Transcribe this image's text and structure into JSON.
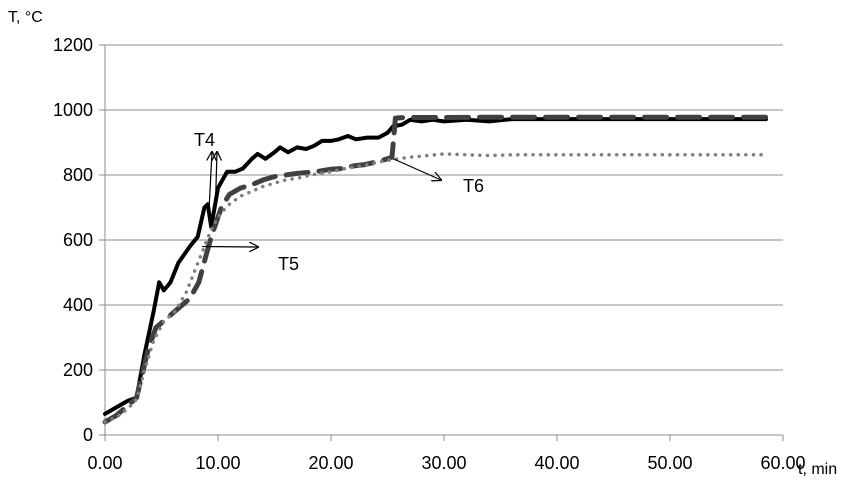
{
  "chart_data": {
    "type": "line",
    "title": "",
    "ylabel": "T, °C",
    "xlabel": "t, min",
    "xlim": [
      0,
      60
    ],
    "ylim": [
      0,
      1200
    ],
    "xticks": [
      "0.00",
      "10.00",
      "20.00",
      "30.00",
      "40.00",
      "50.00",
      "60.00"
    ],
    "yticks": [
      "0",
      "200",
      "400",
      "600",
      "800",
      "1000",
      "1200"
    ],
    "grid": "horizontal",
    "legend": "none",
    "series": [
      {
        "name": "T4",
        "color": "#000000",
        "style": "solid",
        "points": [
          [
            0,
            65
          ],
          [
            1,
            85
          ],
          [
            2,
            105
          ],
          [
            2.8,
            115
          ],
          [
            3.5,
            250
          ],
          [
            4.3,
            380
          ],
          [
            4.8,
            470
          ],
          [
            5.2,
            445
          ],
          [
            5.8,
            470
          ],
          [
            6.5,
            530
          ],
          [
            7.5,
            580
          ],
          [
            8.2,
            610
          ],
          [
            8.8,
            700
          ],
          [
            9.1,
            710
          ],
          [
            9.4,
            640
          ],
          [
            10.0,
            760
          ],
          [
            10.8,
            810
          ],
          [
            11.5,
            810
          ],
          [
            12.2,
            820
          ],
          [
            13.0,
            850
          ],
          [
            13.5,
            865
          ],
          [
            14.2,
            850
          ],
          [
            15.0,
            870
          ],
          [
            15.5,
            885
          ],
          [
            16.2,
            870
          ],
          [
            17.0,
            885
          ],
          [
            17.8,
            880
          ],
          [
            18.5,
            890
          ],
          [
            19.2,
            905
          ],
          [
            20.0,
            905
          ],
          [
            20.7,
            910
          ],
          [
            21.5,
            920
          ],
          [
            22.2,
            910
          ],
          [
            23.2,
            915
          ],
          [
            24.2,
            915
          ],
          [
            25.0,
            930
          ],
          [
            25.5,
            950
          ],
          [
            26.3,
            955
          ],
          [
            27.0,
            970
          ],
          [
            28.0,
            965
          ],
          [
            29.0,
            970
          ],
          [
            30.0,
            965
          ],
          [
            32.0,
            970
          ],
          [
            34.0,
            965
          ],
          [
            36.0,
            972
          ],
          [
            40.0,
            972
          ],
          [
            45.0,
            972
          ],
          [
            50.0,
            972
          ],
          [
            55.0,
            972
          ],
          [
            58.5,
            972
          ]
        ]
      },
      {
        "name": "T5",
        "color": "#404040",
        "style": "dashed",
        "points": [
          [
            0,
            40
          ],
          [
            1,
            60
          ],
          [
            2,
            90
          ],
          [
            2.8,
            115
          ],
          [
            3.8,
            260
          ],
          [
            4.5,
            330
          ],
          [
            5.5,
            360
          ],
          [
            6.5,
            390
          ],
          [
            7.5,
            420
          ],
          [
            8.3,
            470
          ],
          [
            9.0,
            560
          ],
          [
            9.5,
            620
          ],
          [
            10.3,
            700
          ],
          [
            11.0,
            740
          ],
          [
            12.0,
            760
          ],
          [
            13.0,
            770
          ],
          [
            14.0,
            785
          ],
          [
            15.0,
            795
          ],
          [
            16.0,
            800
          ],
          [
            17.0,
            805
          ],
          [
            18.0,
            808
          ],
          [
            19.0,
            812
          ],
          [
            20.0,
            818
          ],
          [
            21.0,
            820
          ],
          [
            22.0,
            828
          ],
          [
            23.0,
            832
          ],
          [
            24.0,
            840
          ],
          [
            25.0,
            850
          ],
          [
            25.4,
            855
          ],
          [
            25.7,
            975
          ],
          [
            26.5,
            977
          ],
          [
            28.0,
            977
          ],
          [
            30.0,
            977
          ],
          [
            35.0,
            978
          ],
          [
            40.0,
            978
          ],
          [
            45.0,
            978
          ],
          [
            50.0,
            978
          ],
          [
            55.0,
            978
          ],
          [
            58.5,
            978
          ]
        ]
      },
      {
        "name": "T6",
        "color": "#808080",
        "style": "dotted",
        "points": [
          [
            0,
            40
          ],
          [
            1,
            55
          ],
          [
            2,
            80
          ],
          [
            2.8,
            110
          ],
          [
            3.5,
            200
          ],
          [
            4.3,
            290
          ],
          [
            5.2,
            350
          ],
          [
            6.2,
            380
          ],
          [
            7.2,
            440
          ],
          [
            8.0,
            510
          ],
          [
            8.8,
            580
          ],
          [
            9.5,
            640
          ],
          [
            10.2,
            680
          ],
          [
            11.0,
            710
          ],
          [
            12.0,
            735
          ],
          [
            13.0,
            750
          ],
          [
            14.0,
            765
          ],
          [
            15.0,
            775
          ],
          [
            16.0,
            785
          ],
          [
            17.0,
            790
          ],
          [
            18.0,
            798
          ],
          [
            19.0,
            805
          ],
          [
            20.0,
            810
          ],
          [
            21.0,
            818
          ],
          [
            22.0,
            825
          ],
          [
            23.0,
            830
          ],
          [
            24.0,
            838
          ],
          [
            25.0,
            845
          ],
          [
            26.0,
            850
          ],
          [
            27.0,
            855
          ],
          [
            28.0,
            858
          ],
          [
            30.0,
            865
          ],
          [
            32.0,
            862
          ],
          [
            34.0,
            860
          ],
          [
            36.0,
            862
          ],
          [
            40.0,
            862
          ],
          [
            45.0,
            862
          ],
          [
            50.0,
            862
          ],
          [
            55.0,
            862
          ],
          [
            58.5,
            862
          ]
        ]
      }
    ],
    "annotations": [
      {
        "text": "T4",
        "arrows_to": [
          [
            9.2,
            690
          ],
          [
            9.8,
            740
          ]
        ]
      },
      {
        "text": "T5",
        "arrows_to": [
          [
            8.6,
            580
          ]
        ]
      },
      {
        "text": "T6",
        "arrows_to": [
          [
            25.5,
            850
          ]
        ]
      }
    ]
  }
}
